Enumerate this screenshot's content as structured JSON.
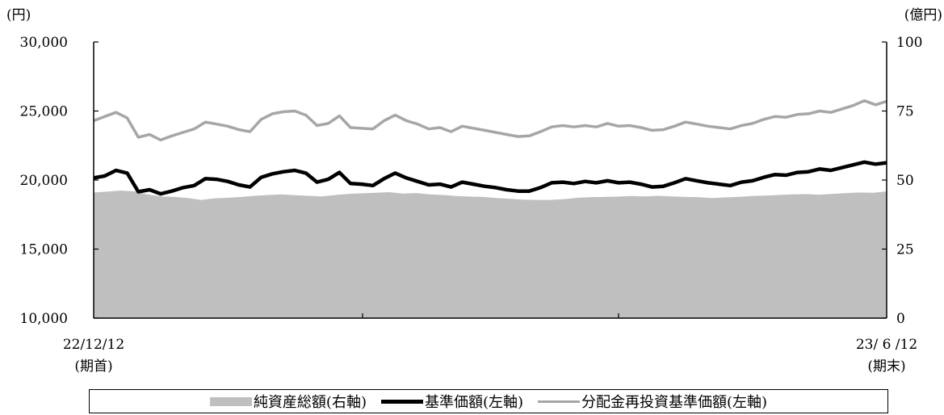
{
  "chart_data": {
    "type": "line",
    "x_start_label": "22/12/12",
    "x_start_sub": "(期首)",
    "x_end_label": "23/ 6 /12",
    "x_end_sub": "(期末)",
    "left_axis": {
      "unit": "(円)",
      "min": 10000,
      "max": 30000,
      "ticks": [
        "10,000",
        "15,000",
        "20,000",
        "25,000",
        "30,000"
      ]
    },
    "right_axis": {
      "unit": "(億円)",
      "min": 0,
      "max": 100,
      "ticks": [
        "0",
        "25",
        "50",
        "75",
        "100"
      ]
    },
    "series": [
      {
        "name": "純資産総額(右軸)",
        "kind": "area",
        "axis": "right",
        "color": "#bfbfbf",
        "values": [
          45.5,
          45.8,
          46.2,
          45.9,
          44.8,
          44.1,
          43.9,
          43.5,
          42.8,
          43.4,
          43.6,
          43.9,
          44.3,
          44.6,
          44.8,
          44.5,
          44.3,
          44.1,
          44.6,
          45.0,
          45.2,
          45.4,
          45.6,
          45.1,
          45.3,
          44.8,
          44.6,
          44.2,
          44.0,
          43.9,
          43.5,
          43.2,
          42.9,
          42.8,
          42.8,
          43.1,
          43.6,
          43.8,
          43.9,
          44.0,
          44.2,
          44.1,
          44.3,
          44.1,
          43.9,
          43.8,
          43.5,
          43.7,
          43.9,
          44.2,
          44.4,
          44.6,
          44.8,
          44.9,
          44.7,
          45.0,
          45.3,
          45.5,
          45.4,
          45.9
        ]
      },
      {
        "name": "基準価額(左軸)",
        "kind": "line",
        "axis": "left",
        "color": "#000000",
        "values": [
          20150,
          20300,
          20700,
          20500,
          19150,
          19300,
          19000,
          19200,
          19450,
          19600,
          20100,
          20050,
          19900,
          19650,
          19500,
          20200,
          20450,
          20600,
          20700,
          20500,
          19850,
          20050,
          20550,
          19750,
          19700,
          19600,
          20100,
          20500,
          20150,
          19900,
          19650,
          19700,
          19500,
          19850,
          19700,
          19550,
          19450,
          19300,
          19200,
          19200,
          19450,
          19800,
          19850,
          19750,
          19900,
          19800,
          19950,
          19800,
          19850,
          19700,
          19500,
          19550,
          19800,
          20100,
          19950,
          19800,
          19700,
          19600,
          19850,
          19950,
          20200,
          20400,
          20350,
          20550,
          20600,
          20800,
          20700,
          20900,
          21100,
          21300,
          21150,
          21250
        ]
      },
      {
        "name": "分配金再投資基準価額(左軸)",
        "kind": "line",
        "axis": "left",
        "color": "#a6a6a6",
        "values": [
          24300,
          24600,
          24900,
          24500,
          23100,
          23300,
          22900,
          23200,
          23450,
          23700,
          24200,
          24050,
          23900,
          23650,
          23500,
          24400,
          24800,
          24950,
          25000,
          24700,
          23950,
          24100,
          24650,
          23800,
          23750,
          23700,
          24300,
          24700,
          24300,
          24050,
          23700,
          23800,
          23500,
          23900,
          23750,
          23600,
          23450,
          23300,
          23150,
          23200,
          23500,
          23850,
          23950,
          23850,
          23950,
          23850,
          24100,
          23900,
          23950,
          23800,
          23600,
          23650,
          23900,
          24200,
          24050,
          23900,
          23800,
          23700,
          23950,
          24100,
          24400,
          24600,
          24550,
          24750,
          24800,
          25000,
          24900,
          25150,
          25400,
          25750,
          25450,
          25700
        ]
      }
    ],
    "grid": false,
    "legend_position": "bottom"
  },
  "legend": {
    "area_label": "純資産総額(右軸)",
    "nav_label": "基準価額(左軸)",
    "reinv_label": "分配金再投資基準価額(左軸)"
  }
}
